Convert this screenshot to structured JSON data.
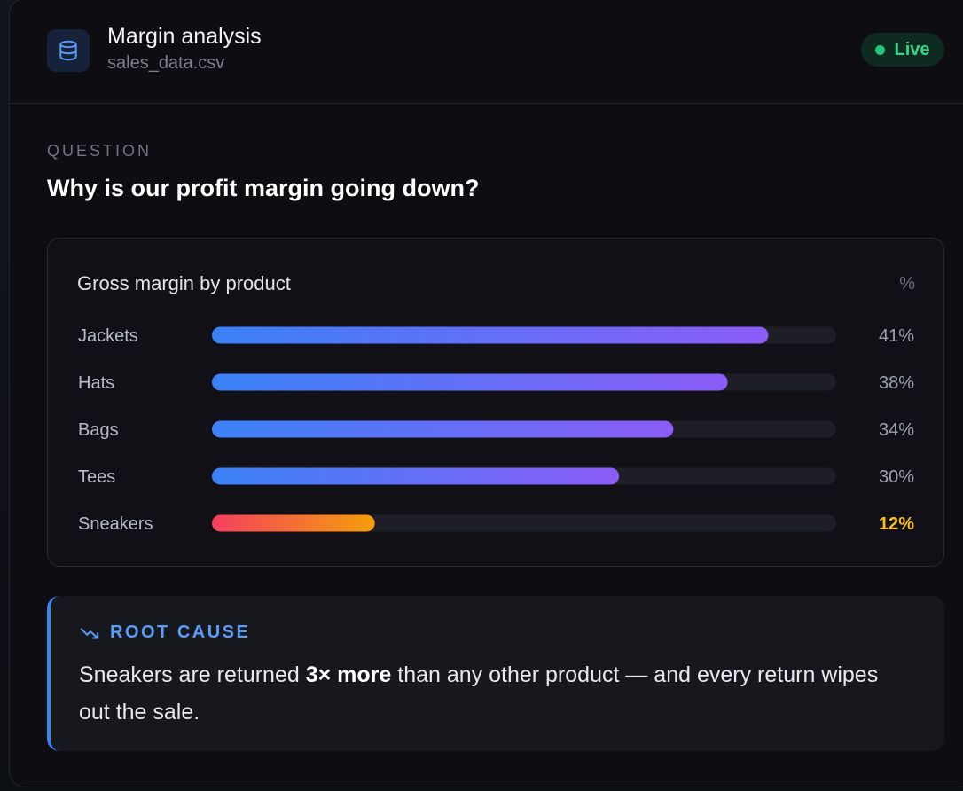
{
  "header": {
    "title": "Margin analysis",
    "subtitle": "sales_data.csv",
    "status": "Live",
    "icon": "database-icon"
  },
  "question": {
    "label": "QUESTION",
    "text": "Why is our profit margin going down?"
  },
  "chart_data": {
    "type": "bar",
    "orientation": "horizontal",
    "title": "Gross margin by product",
    "unit_label": "%",
    "categories": [
      "Jackets",
      "Hats",
      "Bags",
      "Tees",
      "Sneakers"
    ],
    "values": [
      41,
      38,
      34,
      30,
      12
    ],
    "value_labels": [
      "41%",
      "38%",
      "34%",
      "30%",
      "12%"
    ],
    "xlim": [
      0,
      46
    ],
    "highlight_index": 4,
    "colors": {
      "normal_start": "#3b82f6",
      "normal_end": "#8b5cf6",
      "highlight_start": "#f43f5e",
      "highlight_end": "#f59e0b",
      "track": "#1e1f26",
      "highlight_label": "#fbbf24"
    }
  },
  "root_cause": {
    "label": "ROOT CAUSE",
    "icon": "trending-down-icon",
    "text_before": "Sneakers are returned ",
    "text_bold": "3× more",
    "text_after": " than any other product — and every return wipes out the sale."
  }
}
